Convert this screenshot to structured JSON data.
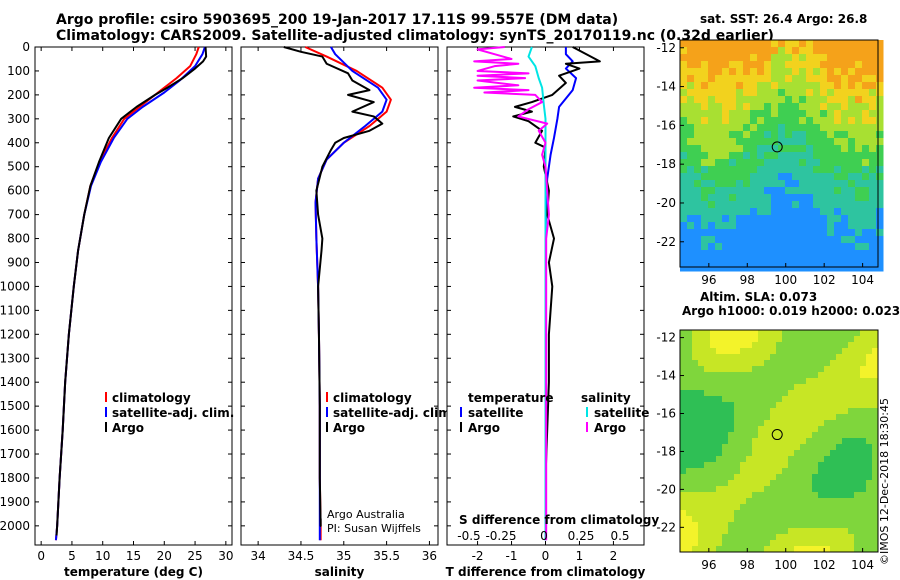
{
  "header": {
    "title_line1": "Argo profile: csiro 5903695_200 19-Jan-2017 17.11S 99.557E (DM data)",
    "title_line2": "Climatology: CARS2009. Satellite-adjusted climatology: synTS_20170119.nc (0.32d earlier)"
  },
  "credit": "©IMOS 12-Dec-2018 18:30:45",
  "colors": {
    "climatology": "#ff0000",
    "satellite": "#0000ff",
    "argo": "#000000",
    "sat_salinity": "#00e5e5",
    "argo_salinity": "#ff00ff"
  },
  "chart_data": [
    {
      "id": "temperature",
      "type": "line",
      "xlabel": "temperature (deg C)",
      "ylabel": "",
      "xlim": [
        -1,
        31
      ],
      "ylim": [
        2080,
        0
      ],
      "xticks": [
        0,
        5,
        10,
        15,
        20,
        25,
        30
      ],
      "yticks": [
        0,
        100,
        200,
        300,
        400,
        500,
        600,
        700,
        800,
        900,
        1000,
        1100,
        1200,
        1300,
        1400,
        1500,
        1600,
        1700,
        1800,
        1900,
        2000
      ],
      "legend": [
        "climatology",
        "satellite-adj. clim.",
        "Argo"
      ],
      "series": [
        {
          "name": "climatology",
          "color": "#ff0000",
          "points": [
            [
              25.6,
              0
            ],
            [
              25.2,
              30
            ],
            [
              24.2,
              80
            ],
            [
              22,
              130
            ],
            [
              19.5,
              180
            ],
            [
              16,
              250
            ],
            [
              13.5,
              300
            ],
            [
              11.5,
              380
            ],
            [
              9.5,
              480
            ],
            [
              8,
              580
            ],
            [
              7,
              700
            ],
            [
              6,
              850
            ],
            [
              5.3,
              1000
            ],
            [
              4.5,
              1200
            ],
            [
              3.9,
              1400
            ],
            [
              3.5,
              1600
            ],
            [
              3,
              1800
            ],
            [
              2.6,
              2000
            ],
            [
              2.4,
              2060
            ]
          ]
        },
        {
          "name": "satellite-adj. clim.",
          "color": "#0000ff",
          "points": [
            [
              26.6,
              0
            ],
            [
              26.2,
              30
            ],
            [
              25,
              80
            ],
            [
              22.5,
              140
            ],
            [
              20,
              190
            ],
            [
              16.5,
              250
            ],
            [
              14,
              300
            ],
            [
              11.8,
              380
            ],
            [
              9.7,
              480
            ],
            [
              8.1,
              580
            ],
            [
              7,
              700
            ],
            [
              6,
              850
            ],
            [
              5.3,
              1000
            ],
            [
              4.5,
              1200
            ],
            [
              3.9,
              1400
            ],
            [
              3.5,
              1600
            ],
            [
              3,
              1800
            ],
            [
              2.6,
              2000
            ],
            [
              2.4,
              2060
            ]
          ]
        },
        {
          "name": "Argo",
          "color": "#000000",
          "points": [
            [
              26.7,
              0
            ],
            [
              26.8,
              40
            ],
            [
              26.3,
              60
            ],
            [
              25,
              90
            ],
            [
              23,
              130
            ],
            [
              20.5,
              170
            ],
            [
              18.5,
              200
            ],
            [
              15.5,
              250
            ],
            [
              13,
              300
            ],
            [
              11,
              380
            ],
            [
              9.4,
              480
            ],
            [
              8,
              580
            ],
            [
              7,
              700
            ],
            [
              6,
              850
            ],
            [
              5.3,
              1000
            ],
            [
              4.5,
              1200
            ],
            [
              3.9,
              1400
            ],
            [
              3.5,
              1600
            ],
            [
              3,
              1800
            ],
            [
              2.6,
              2000
            ],
            [
              2.5,
              2040
            ]
          ]
        }
      ]
    },
    {
      "id": "salinity",
      "type": "line",
      "xlabel": "salinity",
      "xlim": [
        33.8,
        36.1
      ],
      "ylim": [
        2080,
        0
      ],
      "xticks": [
        34,
        34.5,
        35,
        35.5,
        36
      ],
      "legend": [
        "climatology",
        "satellite-adj. clim.",
        "Argo"
      ],
      "annotation": [
        "Argo Australia",
        "PI: Susan Wijffels"
      ],
      "series": [
        {
          "name": "climatology",
          "color": "#ff0000",
          "points": [
            [
              34.55,
              0
            ],
            [
              34.8,
              40
            ],
            [
              35.15,
              100
            ],
            [
              35.45,
              170
            ],
            [
              35.55,
              220
            ],
            [
              35.5,
              270
            ],
            [
              35.3,
              330
            ],
            [
              35.0,
              400
            ],
            [
              34.8,
              470
            ],
            [
              34.7,
              550
            ],
            [
              34.67,
              650
            ],
            [
              34.68,
              800
            ],
            [
              34.7,
              1000
            ],
            [
              34.71,
              1200
            ],
            [
              34.72,
              1500
            ],
            [
              34.72,
              1800
            ],
            [
              34.73,
              2000
            ],
            [
              34.73,
              2060
            ]
          ]
        },
        {
          "name": "satellite-adj. clim.",
          "color": "#0000ff",
          "points": [
            [
              34.85,
              0
            ],
            [
              34.9,
              30
            ],
            [
              35.1,
              100
            ],
            [
              35.4,
              170
            ],
            [
              35.5,
              220
            ],
            [
              35.45,
              270
            ],
            [
              35.25,
              330
            ],
            [
              35.0,
              400
            ],
            [
              34.8,
              470
            ],
            [
              34.7,
              550
            ],
            [
              34.67,
              650
            ],
            [
              34.68,
              800
            ],
            [
              34.7,
              1000
            ],
            [
              34.71,
              1200
            ],
            [
              34.72,
              1500
            ],
            [
              34.72,
              1800
            ],
            [
              34.72,
              2000
            ],
            [
              34.72,
              2060
            ]
          ]
        },
        {
          "name": "Argo",
          "color": "#000000",
          "points": [
            [
              34.3,
              0
            ],
            [
              34.5,
              20
            ],
            [
              34.75,
              40
            ],
            [
              34.8,
              70
            ],
            [
              35.05,
              110
            ],
            [
              35.1,
              140
            ],
            [
              35.3,
              180
            ],
            [
              35.05,
              200
            ],
            [
              35.35,
              230
            ],
            [
              35.1,
              270
            ],
            [
              35.35,
              290
            ],
            [
              35.45,
              320
            ],
            [
              35.3,
              350
            ],
            [
              35.0,
              380
            ],
            [
              34.9,
              400
            ],
            [
              34.85,
              430
            ],
            [
              34.75,
              500
            ],
            [
              34.68,
              600
            ],
            [
              34.7,
              700
            ],
            [
              34.75,
              800
            ],
            [
              34.74,
              850
            ],
            [
              34.7,
              1000
            ],
            [
              34.71,
              1200
            ],
            [
              34.72,
              1500
            ],
            [
              34.72,
              1800
            ],
            [
              34.73,
              2000
            ],
            [
              34.73,
              1970
            ]
          ]
        }
      ]
    },
    {
      "id": "difference",
      "type": "line",
      "xlabel": "T difference from climatology",
      "x2label": "S difference from climatology",
      "xlim": [
        -2.9,
        2.9
      ],
      "ylim": [
        2080,
        0
      ],
      "xticks": [
        -2,
        -1,
        0,
        1,
        2
      ],
      "x2ticks": [
        "-0.5",
        "-0.25",
        "0",
        "0.25",
        "0.5"
      ],
      "legend_left_title": "temperature",
      "legend_right_title": "salinity",
      "legend_left": [
        "satellite",
        "Argo"
      ],
      "legend_right": [
        "satellite",
        "Argo"
      ],
      "series": [
        {
          "name": "satellite",
          "group": "temperature",
          "color": "#0000ff",
          "points": [
            [
              0.6,
              0
            ],
            [
              0.6,
              30
            ],
            [
              0.8,
              60
            ],
            [
              0.6,
              90
            ],
            [
              0.9,
              130
            ],
            [
              0.8,
              180
            ],
            [
              0.4,
              250
            ],
            [
              0.35,
              300
            ],
            [
              0.25,
              380
            ],
            [
              0.15,
              450
            ],
            [
              0.05,
              550
            ],
            [
              0.02,
              650
            ],
            [
              0.0,
              800
            ],
            [
              0.0,
              1100
            ],
            [
              0.0,
              1500
            ],
            [
              0.0,
              1900
            ],
            [
              0.0,
              2060
            ]
          ]
        },
        {
          "name": "Argo",
          "group": "temperature",
          "color": "#000000",
          "points": [
            [
              0.8,
              0
            ],
            [
              1.6,
              60
            ],
            [
              0.6,
              70
            ],
            [
              1.0,
              90
            ],
            [
              0.4,
              120
            ],
            [
              0.6,
              150
            ],
            [
              0.2,
              200
            ],
            [
              -0.4,
              230
            ],
            [
              -0.9,
              250
            ],
            [
              -0.4,
              270
            ],
            [
              -0.95,
              290
            ],
            [
              -0.5,
              310
            ],
            [
              -0.1,
              350
            ],
            [
              -0.3,
              400
            ],
            [
              0.0,
              420
            ],
            [
              -0.05,
              500
            ],
            [
              0.1,
              600
            ],
            [
              0.05,
              700
            ],
            [
              0.25,
              800
            ],
            [
              0.1,
              900
            ],
            [
              0.2,
              1000
            ],
            [
              0.1,
              1200
            ],
            [
              0.1,
              1400
            ],
            [
              0.05,
              1600
            ],
            [
              0.0,
              1800
            ],
            [
              0.0,
              2000
            ]
          ]
        },
        {
          "name": "satellite",
          "group": "salinity",
          "color": "#00e5e5",
          "points": [
            [
              -0.4,
              0
            ],
            [
              -0.5,
              40
            ],
            [
              -0.3,
              80
            ],
            [
              -0.2,
              130
            ],
            [
              -0.1,
              170
            ],
            [
              -0.05,
              240
            ],
            [
              0.0,
              300
            ],
            [
              0.0,
              500
            ],
            [
              0.0,
              800
            ],
            [
              0.0,
              1200
            ],
            [
              0.0,
              1600
            ],
            [
              0.0,
              2060
            ]
          ]
        },
        {
          "name": "Argo",
          "group": "salinity",
          "color": "#ff00ff",
          "points": [
            [
              -1.2,
              0
            ],
            [
              -2.0,
              10
            ],
            [
              -1.5,
              30
            ],
            [
              -1.0,
              50
            ],
            [
              -2.1,
              60
            ],
            [
              -0.8,
              70
            ],
            [
              -1.5,
              80
            ],
            [
              -2.0,
              100
            ],
            [
              -0.5,
              110
            ],
            [
              -2.0,
              120
            ],
            [
              -0.6,
              130
            ],
            [
              -2.0,
              140
            ],
            [
              -0.8,
              160
            ],
            [
              -2.1,
              170
            ],
            [
              -0.5,
              180
            ],
            [
              -1.8,
              190
            ],
            [
              -0.3,
              200
            ],
            [
              -0.1,
              230
            ],
            [
              -0.5,
              260
            ],
            [
              -0.8,
              290
            ],
            [
              0.05,
              320
            ],
            [
              -0.2,
              350
            ],
            [
              0.0,
              400
            ],
            [
              -0.1,
              450
            ],
            [
              0.0,
              500
            ],
            [
              0.05,
              600
            ],
            [
              0.1,
              700
            ],
            [
              0.02,
              800
            ],
            [
              0.02,
              1200
            ],
            [
              0.02,
              1600
            ],
            [
              0.02,
              2000
            ],
            [
              0.02,
              2060
            ]
          ]
        }
      ]
    },
    {
      "id": "sst-map",
      "type": "heatmap",
      "title": "sat. SST: 26.4  Argo: 26.8",
      "xticks": [
        96,
        98,
        100,
        102,
        104
      ],
      "yticks": [
        -12,
        -14,
        -16,
        -18,
        -20,
        -22
      ],
      "xlim": [
        94.5,
        104.8
      ],
      "ylim": [
        -23.3,
        -11.6
      ],
      "marker": {
        "lon": 99.557,
        "lat": -17.11
      }
    },
    {
      "id": "sla-map",
      "type": "heatmap",
      "title": "Altim. SLA: 0.073",
      "subtitle": "Argo h1000: 0.019 h2000: 0.023",
      "xticks": [
        96,
        98,
        100,
        102,
        104
      ],
      "yticks": [
        -12,
        -14,
        -16,
        -18,
        -20,
        -22
      ],
      "xlim": [
        94.5,
        104.8
      ],
      "ylim": [
        -23.3,
        -11.6
      ],
      "marker": {
        "lon": 99.557,
        "lat": -17.11
      }
    }
  ]
}
